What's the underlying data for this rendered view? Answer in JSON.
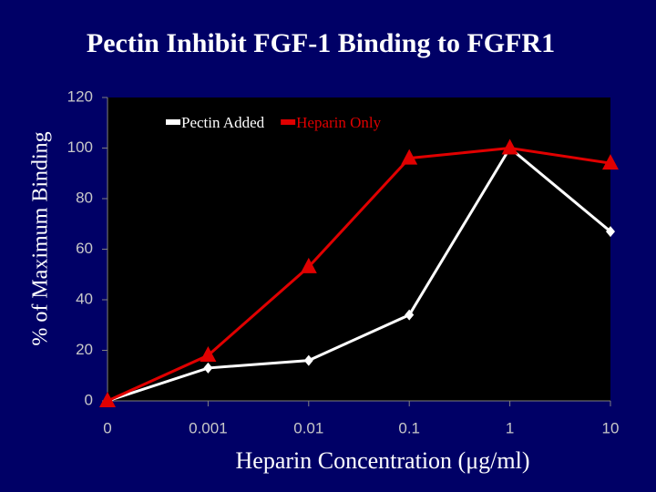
{
  "chart_data": {
    "type": "line",
    "title": "Pectin Inhibit FGF-1 Binding to FGFR1",
    "x_label": "Heparin Concentration (μg/ml)",
    "y_label": "% of Maximum Binding",
    "categories": [
      "0",
      "0.001",
      "0.01",
      "0.1",
      "1",
      "10"
    ],
    "series": [
      {
        "name": "Pectin Added",
        "color": "#ffffff",
        "marker": "diamond",
        "values": [
          0,
          13,
          16,
          34,
          100,
          67
        ]
      },
      {
        "name": "Heparin Only",
        "color": "#e00000",
        "marker": "triangle",
        "values": [
          0,
          18,
          53,
          96,
          100,
          94
        ]
      }
    ],
    "ylim": [
      0,
      120
    ],
    "yticks": [
      0,
      20,
      40,
      60,
      80,
      100,
      120
    ],
    "legend": "upper left",
    "grid": false
  }
}
